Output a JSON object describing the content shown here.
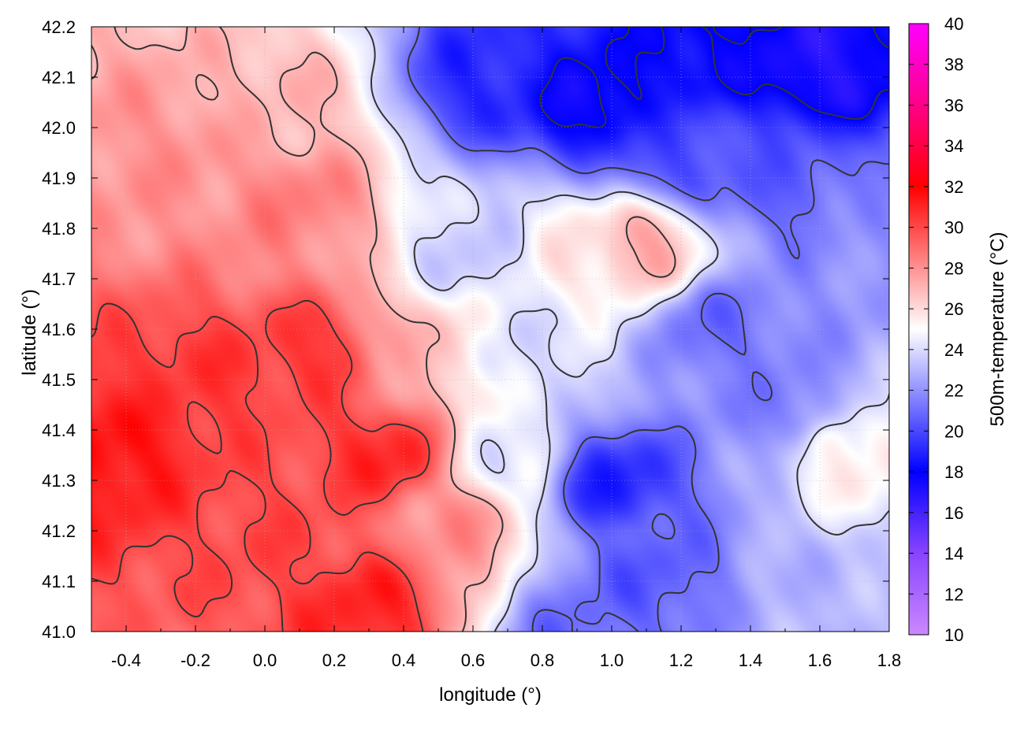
{
  "chart_data": {
    "type": "heatmap",
    "title": "",
    "xlabel": "longitude (°)",
    "ylabel": "latitude (°)",
    "colorbar_label": "500m-temperature (°C)",
    "xlim": [
      -0.5,
      1.8
    ],
    "ylim": [
      41.0,
      42.2
    ],
    "zlim": [
      10,
      40
    ],
    "x_ticks": [
      -0.4,
      -0.2,
      0.0,
      0.2,
      0.4,
      0.6,
      0.8,
      1.0,
      1.2,
      1.4,
      1.6,
      1.8
    ],
    "x_tick_labels": [
      "-0.4",
      "-0.2",
      "0.0",
      "0.2",
      "0.4",
      "0.6",
      "0.8",
      "1.0",
      "1.2",
      "1.4",
      "1.6",
      "1.8"
    ],
    "y_ticks": [
      41.0,
      41.1,
      41.2,
      41.3,
      41.4,
      41.5,
      41.6,
      41.7,
      41.8,
      41.9,
      42.0,
      42.1,
      42.2
    ],
    "y_tick_labels": [
      "41.0",
      "41.1",
      "41.2",
      "41.3",
      "41.4",
      "41.5",
      "41.6",
      "41.7",
      "41.8",
      "41.9",
      "42.0",
      "42.1",
      "42.2"
    ],
    "z_ticks": [
      10,
      12,
      14,
      16,
      18,
      20,
      22,
      24,
      26,
      28,
      30,
      32,
      34,
      36,
      38,
      40
    ],
    "z_tick_labels": [
      "10",
      "12",
      "14",
      "16",
      "18",
      "20",
      "22",
      "24",
      "26",
      "28",
      "30",
      "32",
      "34",
      "36",
      "38",
      "40"
    ],
    "colormap": [
      {
        "value": 10,
        "color": "#cc88ff"
      },
      {
        "value": 14,
        "color": "#8844ff"
      },
      {
        "value": 18,
        "color": "#0000ff"
      },
      {
        "value": 25,
        "color": "#ffffff"
      },
      {
        "value": 32,
        "color": "#ff0000"
      },
      {
        "value": 36,
        "color": "#ff0088"
      },
      {
        "value": 40,
        "color": "#ff00ff"
      }
    ],
    "grid": true,
    "contour_color": "#333333",
    "field_centers": [
      {
        "lon": -0.45,
        "lat": 41.35,
        "temp": 31.5
      },
      {
        "lon": -0.2,
        "lat": 41.5,
        "temp": 30.5
      },
      {
        "lon": 0.0,
        "lat": 41.2,
        "temp": 30
      },
      {
        "lon": 0.15,
        "lat": 41.55,
        "temp": 30.5
      },
      {
        "lon": 0.1,
        "lat": 41.85,
        "temp": 28.5
      },
      {
        "lon": -0.3,
        "lat": 41.95,
        "temp": 28
      },
      {
        "lon": 0.05,
        "lat": 42.05,
        "temp": 27
      },
      {
        "lon": 0.35,
        "lat": 41.35,
        "temp": 31
      },
      {
        "lon": 0.3,
        "lat": 41.05,
        "temp": 31
      },
      {
        "lon": 0.55,
        "lat": 41.2,
        "temp": 28
      },
      {
        "lon": 0.45,
        "lat": 41.55,
        "temp": 27
      },
      {
        "lon": 0.6,
        "lat": 41.75,
        "temp": 23.5
      },
      {
        "lon": 0.9,
        "lat": 41.75,
        "temp": 25.5
      },
      {
        "lon": 1.08,
        "lat": 41.76,
        "temp": 27.5
      },
      {
        "lon": 0.75,
        "lat": 41.55,
        "temp": 24
      },
      {
        "lon": 0.65,
        "lat": 42.1,
        "temp": 19
      },
      {
        "lon": 0.95,
        "lat": 42.05,
        "temp": 17.5
      },
      {
        "lon": 1.25,
        "lat": 42.15,
        "temp": 18
      },
      {
        "lon": 1.6,
        "lat": 42.12,
        "temp": 17
      },
      {
        "lon": 1.2,
        "lat": 41.95,
        "temp": 20
      },
      {
        "lon": 1.5,
        "lat": 41.9,
        "temp": 20.5
      },
      {
        "lon": 1.75,
        "lat": 41.8,
        "temp": 22
      },
      {
        "lon": 1.3,
        "lat": 41.6,
        "temp": 21
      },
      {
        "lon": 1.5,
        "lat": 41.45,
        "temp": 21.5
      },
      {
        "lon": 1.7,
        "lat": 41.35,
        "temp": 25.5
      },
      {
        "lon": 1.0,
        "lat": 41.3,
        "temp": 19
      },
      {
        "lon": 1.1,
        "lat": 41.1,
        "temp": 20.5
      },
      {
        "lon": 0.9,
        "lat": 41.0,
        "temp": 21
      },
      {
        "lon": 1.6,
        "lat": 41.05,
        "temp": 23
      },
      {
        "lon": 0.7,
        "lat": 41.35,
        "temp": 24.5
      }
    ]
  }
}
